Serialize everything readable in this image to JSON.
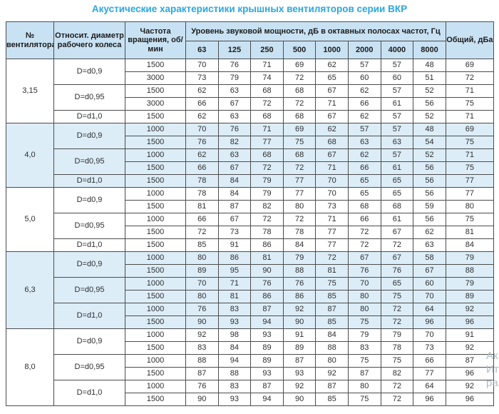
{
  "title": "Акустические характеристики крышных вентиляторов серии ВКР",
  "colors": {
    "title_accent": "#29a7e0",
    "header_bg": "#c9e2f3",
    "shaded_row_bg": "#dcedf8",
    "border": "#4c4c4c"
  },
  "watermark": {
    "line1": "Ак",
    "line2": "Ит",
    "line3": "ра"
  },
  "table": {
    "headers": {
      "fan_number": "№ вентилятора",
      "diameter": "Относит. диаметр рабочего колеса",
      "speed": "Частота вращения, об/мин",
      "spl_group": "Уровень звуковой мощности, дБ в октавных полосах частот, Гц",
      "frequencies": [
        "63",
        "125",
        "250",
        "500",
        "1000",
        "2000",
        "4000",
        "8000"
      ],
      "total": "Общий, дБа"
    },
    "groups": [
      {
        "fan": "3,15",
        "shaded": false,
        "subgroups": [
          {
            "diameter": "D=d0,9",
            "rows": [
              {
                "speed": "1500",
                "values": [
                  70,
                  76,
                  71,
                  69,
                  62,
                  57,
                  57,
                  48
                ],
                "total": 69
              },
              {
                "speed": "3000",
                "values": [
                  73,
                  79,
                  74,
                  72,
                  65,
                  60,
                  60,
                  51
                ],
                "total": 72
              }
            ]
          },
          {
            "diameter": "D=d0,95",
            "rows": [
              {
                "speed": "1500",
                "values": [
                  62,
                  63,
                  68,
                  68,
                  67,
                  62,
                  57,
                  52
                ],
                "total": 71
              },
              {
                "speed": "3000",
                "values": [
                  66,
                  67,
                  72,
                  72,
                  71,
                  66,
                  61,
                  56
                ],
                "total": 75
              }
            ]
          },
          {
            "diameter": "D=d1,0",
            "rows": [
              {
                "speed": "1500",
                "values": [
                  62,
                  63,
                  68,
                  68,
                  67,
                  62,
                  57,
                  52
                ],
                "total": 71
              }
            ]
          }
        ]
      },
      {
        "fan": "4,0",
        "shaded": true,
        "subgroups": [
          {
            "diameter": "D=d0,9",
            "rows": [
              {
                "speed": "1000",
                "values": [
                  70,
                  76,
                  71,
                  69,
                  62,
                  57,
                  57,
                  48
                ],
                "total": 69
              },
              {
                "speed": "1500",
                "values": [
                  76,
                  82,
                  77,
                  75,
                  68,
                  63,
                  63,
                  54
                ],
                "total": 75
              }
            ]
          },
          {
            "diameter": "D=d0,95",
            "rows": [
              {
                "speed": "1000",
                "values": [
                  62,
                  63,
                  68,
                  68,
                  67,
                  62,
                  57,
                  52
                ],
                "total": 71
              },
              {
                "speed": "1500",
                "values": [
                  66,
                  67,
                  72,
                  72,
                  71,
                  66,
                  61,
                  56
                ],
                "total": 75
              }
            ]
          },
          {
            "diameter": "D=d1,0",
            "rows": [
              {
                "speed": "1500",
                "values": [
                  78,
                  84,
                  79,
                  77,
                  70,
                  65,
                  65,
                  56
                ],
                "total": 77
              }
            ]
          }
        ]
      },
      {
        "fan": "5,0",
        "shaded": false,
        "subgroups": [
          {
            "diameter": "D=d0,9",
            "rows": [
              {
                "speed": "1000",
                "values": [
                  78,
                  84,
                  79,
                  77,
                  70,
                  65,
                  65,
                  56
                ],
                "total": 77
              },
              {
                "speed": "1500",
                "values": [
                  81,
                  87,
                  82,
                  80,
                  73,
                  68,
                  68,
                  59
                ],
                "total": 80
              }
            ]
          },
          {
            "diameter": "D=d0,95",
            "rows": [
              {
                "speed": "1000",
                "values": [
                  66,
                  67,
                  72,
                  72,
                  71,
                  66,
                  61,
                  56
                ],
                "total": 75
              },
              {
                "speed": "1500",
                "values": [
                  72,
                  73,
                  78,
                  78,
                  77,
                  72,
                  67,
                  62
                ],
                "total": 81
              }
            ]
          },
          {
            "diameter": "D=d1,0",
            "rows": [
              {
                "speed": "1500",
                "values": [
                  85,
                  91,
                  86,
                  84,
                  77,
                  72,
                  72,
                  63
                ],
                "total": 84
              }
            ]
          }
        ]
      },
      {
        "fan": "6,3",
        "shaded": true,
        "subgroups": [
          {
            "diameter": "D=d0,9",
            "rows": [
              {
                "speed": "1000",
                "values": [
                  80,
                  86,
                  81,
                  79,
                  72,
                  67,
                  67,
                  58
                ],
                "total": 79
              },
              {
                "speed": "1500",
                "values": [
                  89,
                  95,
                  90,
                  88,
                  81,
                  76,
                  76,
                  67
                ],
                "total": 88
              }
            ]
          },
          {
            "diameter": "D=d0,95",
            "rows": [
              {
                "speed": "1000",
                "values": [
                  70,
                  71,
                  76,
                  76,
                  75,
                  70,
                  65,
                  60
                ],
                "total": 79
              },
              {
                "speed": "1500",
                "values": [
                  80,
                  81,
                  86,
                  86,
                  85,
                  80,
                  75,
                  70
                ],
                "total": 89
              }
            ]
          },
          {
            "diameter": "D=d1,0",
            "rows": [
              {
                "speed": "1000",
                "values": [
                  76,
                  83,
                  87,
                  92,
                  87,
                  80,
                  72,
                  64
                ],
                "total": 92
              },
              {
                "speed": "1500",
                "values": [
                  90,
                  93,
                  94,
                  90,
                  85,
                  75,
                  72,
                  96
                ],
                "total": 96
              }
            ]
          }
        ]
      },
      {
        "fan": "8,0",
        "shaded": false,
        "subgroups": [
          {
            "diameter": "D=d0,9",
            "rows": [
              {
                "speed": "1000",
                "values": [
                  92,
                  98,
                  93,
                  91,
                  84,
                  79,
                  79,
                  70
                ],
                "total": 91
              },
              {
                "speed": "1500",
                "values": [
                  83,
                  84,
                  89,
                  89,
                  88,
                  83,
                  78,
                  73
                ],
                "total": 92
              }
            ]
          },
          {
            "diameter": "D=d0,95",
            "rows": [
              {
                "speed": "1000",
                "values": [
                  88,
                  94,
                  89,
                  87,
                  80,
                  75,
                  75,
                  66
                ],
                "total": 87
              },
              {
                "speed": "1500",
                "values": [
                  87,
                  88,
                  93,
                  93,
                  92,
                  87,
                  82,
                  77
                ],
                "total": 96
              }
            ]
          },
          {
            "diameter": "D=d1,0",
            "rows": [
              {
                "speed": "1000",
                "values": [
                  76,
                  83,
                  87,
                  92,
                  87,
                  80,
                  72,
                  64
                ],
                "total": 92
              },
              {
                "speed": "1500",
                "values": [
                  90,
                  93,
                  94,
                  90,
                  85,
                  75,
                  72,
                  96
                ],
                "total": 96
              }
            ]
          }
        ]
      }
    ]
  }
}
